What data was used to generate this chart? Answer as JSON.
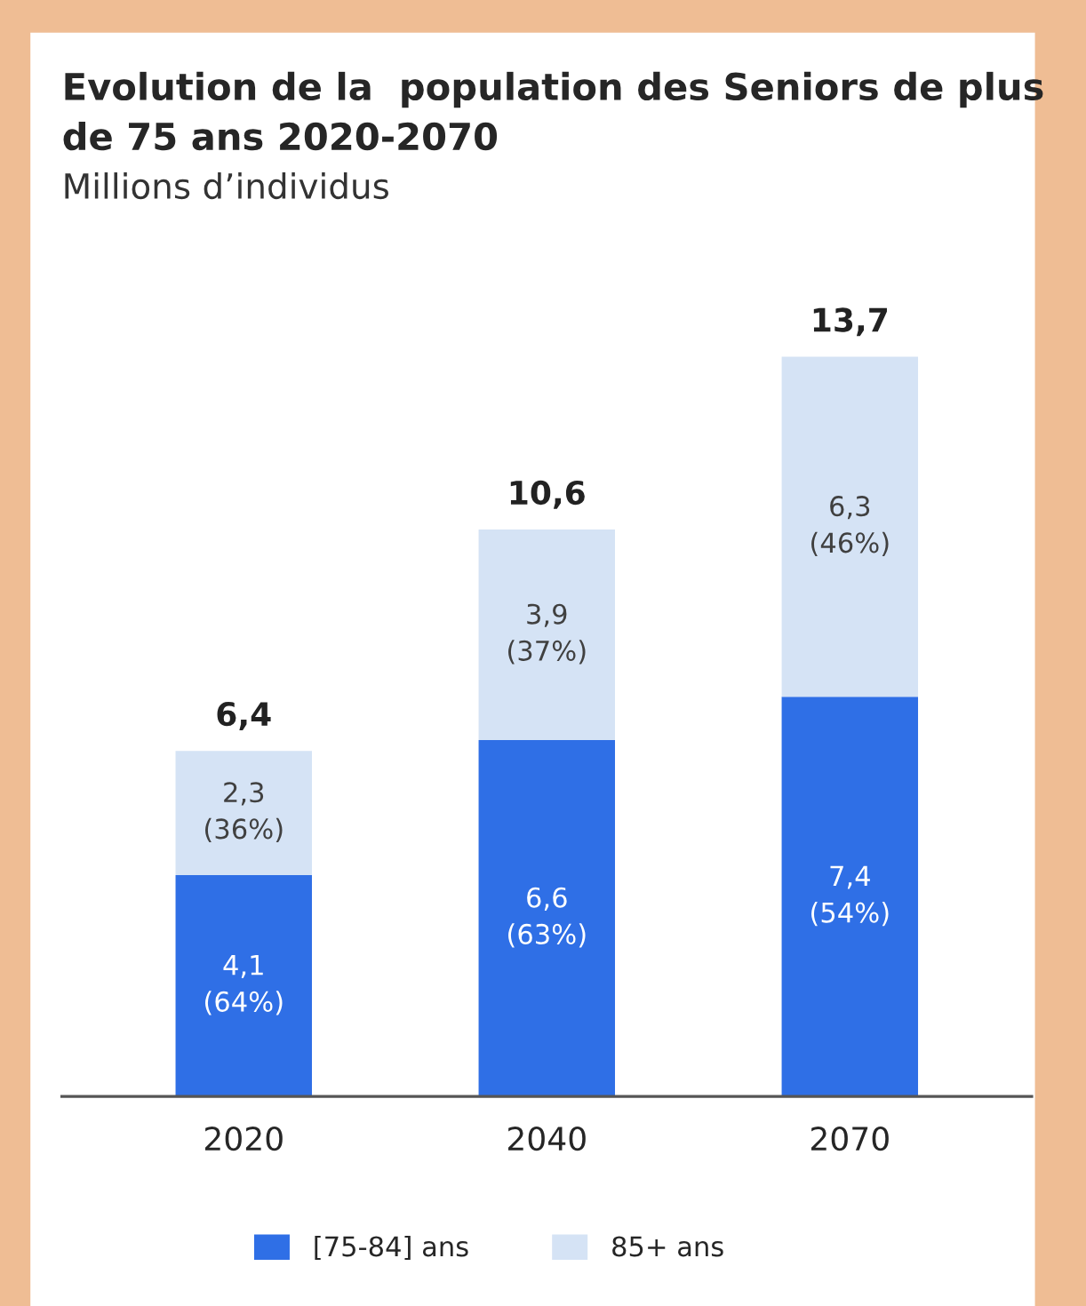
{
  "chart_data": {
    "type": "bar",
    "stacked": true,
    "title": "Evolution de la  population des Seniors de plus de 75 ans 2020-2070",
    "subtitle": "Millions d’individus",
    "categories": [
      "2020",
      "2040",
      "2070"
    ],
    "series": [
      {
        "name": "[75-84] ans",
        "color": "#2f6fe6",
        "values": [
          4.1,
          6.6,
          7.4
        ],
        "value_labels": [
          "4,1\n(64%)",
          "6,6\n(63%)",
          "7,4\n(54%)"
        ]
      },
      {
        "name": "85+ ans",
        "color": "#d5e3f5",
        "values": [
          2.3,
          3.9,
          6.3
        ],
        "value_labels": [
          "2,3\n(36%)",
          "3,9\n(37%)",
          "6,3\n(46%)"
        ]
      }
    ],
    "totals": [
      "6,4",
      "10,6",
      "13,7"
    ],
    "tick_labels": "x",
    "grid": false,
    "legend": "bottom"
  }
}
